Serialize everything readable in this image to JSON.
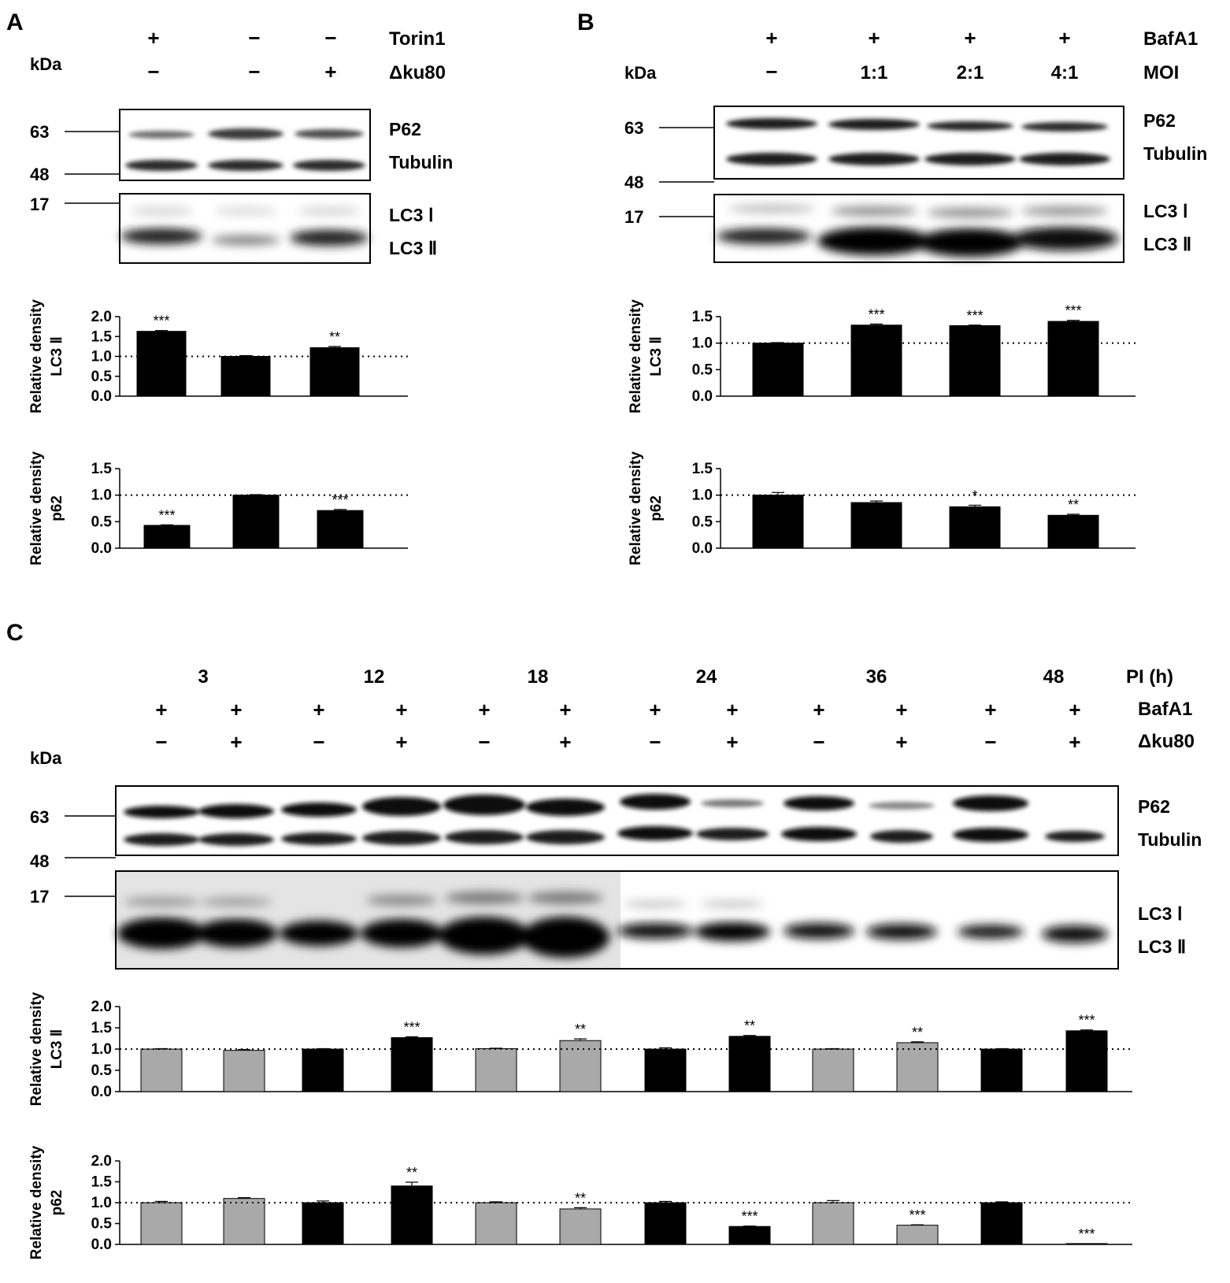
{
  "panels": [
    {
      "letter": "A",
      "header_rows": [
        {
          "label": "Torin1",
          "signs": [
            "+",
            "−",
            "−"
          ]
        },
        {
          "label": "Δku80",
          "italic": true,
          "signs": [
            "−",
            "−",
            "+"
          ]
        }
      ],
      "kda_label": "kDa",
      "mw_markers": [
        "63",
        "48",
        "17"
      ],
      "blot_labels": [
        "P62",
        "Tubulin",
        "LC3 Ⅰ",
        "LC3 Ⅱ"
      ]
    },
    {
      "letter": "B",
      "header_rows": [
        {
          "label": "BafA1",
          "signs": [
            "+",
            "+",
            "+",
            "+"
          ]
        },
        {
          "label": "MOI",
          "signs": [
            "−",
            "1:1",
            "2:1",
            "4:1"
          ]
        }
      ],
      "kda_label": "kDa",
      "mw_markers": [
        "63",
        "48",
        "17"
      ],
      "blot_labels": [
        "P62",
        "Tubulin",
        "LC3 Ⅰ",
        "LC3 Ⅱ"
      ]
    },
    {
      "letter": "C",
      "header_rows": [
        {
          "label": "PI (h)",
          "signs": [
            "3",
            "12",
            "18",
            "24",
            "36",
            "48"
          ]
        },
        {
          "label": "BafA1",
          "signs": [
            "+",
            "+",
            "+",
            "+",
            "+",
            "+",
            "+",
            "+",
            "+",
            "+",
            "+",
            "+"
          ]
        },
        {
          "label": "Δku80",
          "italic": true,
          "signs": [
            "−",
            "+",
            "−",
            "+",
            "−",
            "+",
            "−",
            "+",
            "−",
            "+",
            "−",
            "+"
          ]
        }
      ],
      "kda_label": "kDa",
      "mw_markers": [
        "63",
        "48",
        "17"
      ],
      "blot_labels": [
        "P62",
        "Tubulin",
        "LC3 Ⅰ",
        "LC3 Ⅱ"
      ]
    }
  ],
  "chart_data": [
    {
      "id": "A-LC3",
      "type": "bar",
      "ylabel": [
        "Relative density",
        "LC3 Ⅱ"
      ],
      "values": [
        1.63,
        1.0,
        1.22
      ],
      "errors": [
        0.02,
        0.02,
        0.03
      ],
      "significance": [
        "***",
        "",
        "**"
      ],
      "colors": [
        "#000000",
        "#000000",
        "#000000"
      ],
      "ylim": [
        0,
        2.0
      ],
      "yticks": [
        "0.0",
        "0.5",
        "1.0",
        "1.5",
        "2.0"
      ],
      "reference_line": 1.0
    },
    {
      "id": "A-p62",
      "type": "bar",
      "ylabel": [
        "Relative density",
        "p62"
      ],
      "values": [
        0.43,
        1.0,
        0.71
      ],
      "errors": [
        0.01,
        0.01,
        0.02
      ],
      "significance": [
        "***",
        "",
        "***"
      ],
      "colors": [
        "#000000",
        "#000000",
        "#000000"
      ],
      "ylim": [
        0,
        1.5
      ],
      "yticks": [
        "0.0",
        "0.5",
        "1.0",
        "1.5"
      ],
      "reference_line": 1.0
    },
    {
      "id": "B-LC3",
      "type": "bar",
      "ylabel": [
        "Relative density",
        "LC3 Ⅱ"
      ],
      "values": [
        1.0,
        1.34,
        1.33,
        1.41
      ],
      "errors": [
        0.01,
        0.02,
        0.01,
        0.02
      ],
      "significance": [
        "",
        "***",
        "***",
        "***"
      ],
      "colors": [
        "#000000",
        "#000000",
        "#000000",
        "#000000"
      ],
      "ylim": [
        0,
        1.5
      ],
      "yticks": [
        "0.0",
        "0.5",
        "1.0",
        "1.5"
      ],
      "reference_line": 1.0
    },
    {
      "id": "B-p62",
      "type": "bar",
      "ylabel": [
        "Relative density",
        "p62"
      ],
      "values": [
        1.0,
        0.86,
        0.78,
        0.62
      ],
      "errors": [
        0.05,
        0.03,
        0.03,
        0.02
      ],
      "significance": [
        "",
        "",
        "*",
        "**"
      ],
      "colors": [
        "#000000",
        "#000000",
        "#000000",
        "#000000"
      ],
      "ylim": [
        0,
        1.5
      ],
      "yticks": [
        "0.0",
        "0.5",
        "1.0",
        "1.5"
      ],
      "reference_line": 1.0
    },
    {
      "id": "C-LC3",
      "type": "bar",
      "ylabel": [
        "Relative density",
        "LC3 Ⅱ"
      ],
      "values": [
        1.0,
        0.97,
        1.0,
        1.27,
        1.01,
        1.2,
        1.0,
        1.3,
        1.0,
        1.15,
        1.0,
        1.43
      ],
      "errors": [
        0.01,
        0.02,
        0.01,
        0.02,
        0.01,
        0.04,
        0.03,
        0.02,
        0.01,
        0.02,
        0.01,
        0.02
      ],
      "significance": [
        "",
        "",
        "",
        "***",
        "",
        "**",
        "",
        "**",
        "",
        "**",
        "",
        "***"
      ],
      "colors": [
        "#a9a9a9",
        "#a9a9a9",
        "#000000",
        "#000000",
        "#a9a9a9",
        "#a9a9a9",
        "#000000",
        "#000000",
        "#a9a9a9",
        "#a9a9a9",
        "#000000",
        "#000000"
      ],
      "ylim": [
        0,
        2.0
      ],
      "yticks": [
        "0.0",
        "0.5",
        "1.0",
        "1.5",
        "2.0"
      ],
      "reference_line": 1.0
    },
    {
      "id": "C-p62",
      "type": "bar",
      "ylabel": [
        "Relative density",
        "p62"
      ],
      "values": [
        1.0,
        1.1,
        1.0,
        1.4,
        1.0,
        0.85,
        1.0,
        0.43,
        1.0,
        0.46,
        1.0,
        0.02
      ],
      "errors": [
        0.03,
        0.02,
        0.04,
        0.09,
        0.02,
        0.03,
        0.03,
        0.01,
        0.05,
        0.01,
        0.02,
        0.0
      ],
      "significance": [
        "",
        "",
        "",
        "**",
        "",
        "**",
        "",
        "***",
        "",
        "***",
        "",
        "***"
      ],
      "colors": [
        "#a9a9a9",
        "#a9a9a9",
        "#000000",
        "#000000",
        "#a9a9a9",
        "#a9a9a9",
        "#000000",
        "#000000",
        "#a9a9a9",
        "#a9a9a9",
        "#000000",
        "#000000"
      ],
      "ylim": [
        0,
        2.0
      ],
      "yticks": [
        "0.0",
        "0.5",
        "1.0",
        "1.5",
        "2.0"
      ],
      "reference_line": 1.0
    }
  ]
}
